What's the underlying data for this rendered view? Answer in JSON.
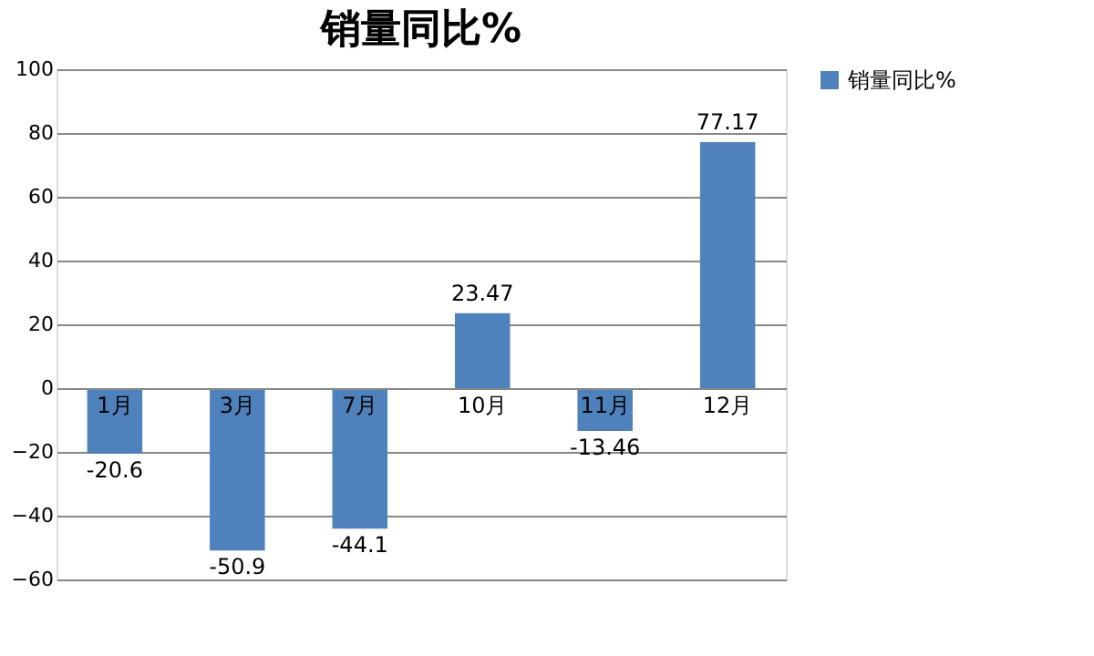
{
  "chart_data": {
    "type": "bar",
    "title": "销量同比%",
    "categories": [
      "1月",
      "3月",
      "7月",
      "10月",
      "11月",
      "12月"
    ],
    "series": [
      {
        "name": "销量同比%",
        "color": "#4f81bd",
        "values": [
          -20.6,
          -50.9,
          -44.1,
          23.47,
          -13.46,
          77.17
        ]
      }
    ],
    "ylim": [
      -60,
      100
    ],
    "yticks": [
      -60,
      -40,
      -20,
      0,
      20,
      40,
      60,
      80,
      100
    ],
    "grid": "y",
    "legend": "right",
    "data_labels": true
  }
}
